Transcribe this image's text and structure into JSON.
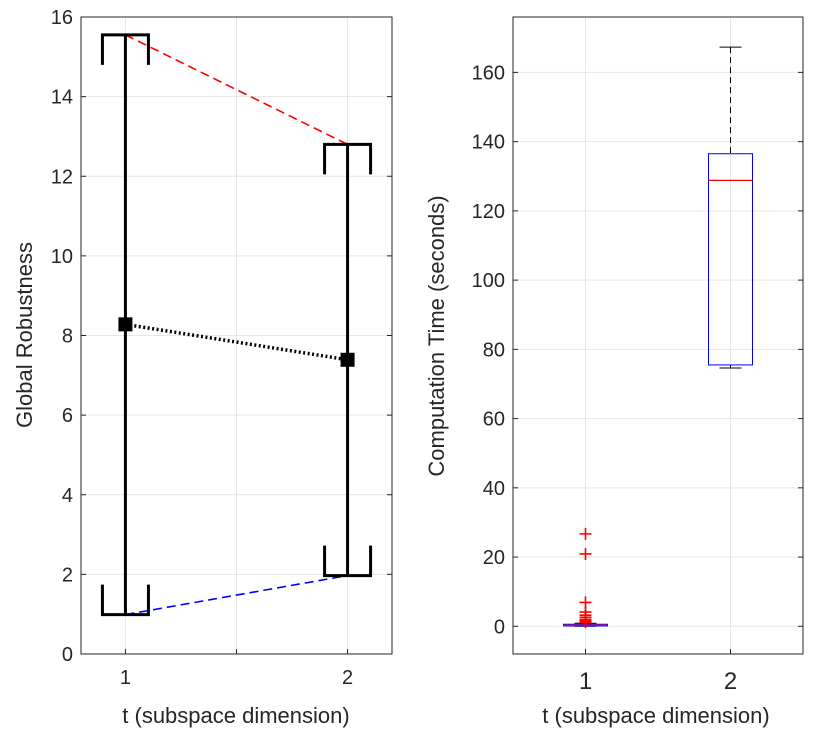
{
  "chart_data": [
    {
      "type": "errorbar",
      "xlabel": "t (subspace dimension)",
      "ylabel": "Global Robustness",
      "xlim": [
        0.8,
        2.2
      ],
      "ylim": [
        0,
        16
      ],
      "xticks": [
        1,
        2
      ],
      "xtick_labels": [
        "1",
        "2"
      ],
      "yticks": [
        0,
        2,
        4,
        6,
        8,
        10,
        12,
        14,
        16
      ],
      "ytick_labels": [
        "0",
        "2",
        "4",
        "6",
        "8",
        "10",
        "12",
        "14",
        "16"
      ],
      "grid": true,
      "x": [
        1,
        2
      ],
      "mean": [
        8.28,
        7.39
      ],
      "max": [
        15.55,
        12.8
      ],
      "min": [
        0.99,
        1.97
      ],
      "max_line_color": "#ff0000",
      "min_line_color": "#0000ff",
      "mean_line_color": "#000000"
    },
    {
      "type": "boxplot",
      "xlabel": "t (subspace dimension)",
      "ylabel": "Computation Time (seconds)",
      "ylim": [
        -8,
        176
      ],
      "yticks": [
        0,
        20,
        40,
        60,
        80,
        100,
        120,
        140,
        160
      ],
      "ytick_labels": [
        "0",
        "20",
        "40",
        "60",
        "80",
        "100",
        "120",
        "140",
        "160"
      ],
      "categories": [
        "1",
        "2"
      ],
      "grid": true,
      "boxes": [
        {
          "category": "1",
          "q1": 0.1,
          "median": 0.3,
          "q3": 0.6,
          "whisker_low": 0.0,
          "whisker_high": 0.9,
          "outliers": [
            1.2,
            1.6,
            2.0,
            2.6,
            3.2,
            4.1,
            6.9,
            20.9,
            26.7
          ]
        },
        {
          "category": "2",
          "q1": 75.5,
          "median": 128.8,
          "q3": 136.5,
          "whisker_low": 74.6,
          "whisker_high": 167.3,
          "outliers": []
        }
      ],
      "box_color": "#0000ff",
      "median_color": "#ff0000",
      "outlier_color": "#ff0000",
      "whisker_color": "#000000"
    }
  ]
}
